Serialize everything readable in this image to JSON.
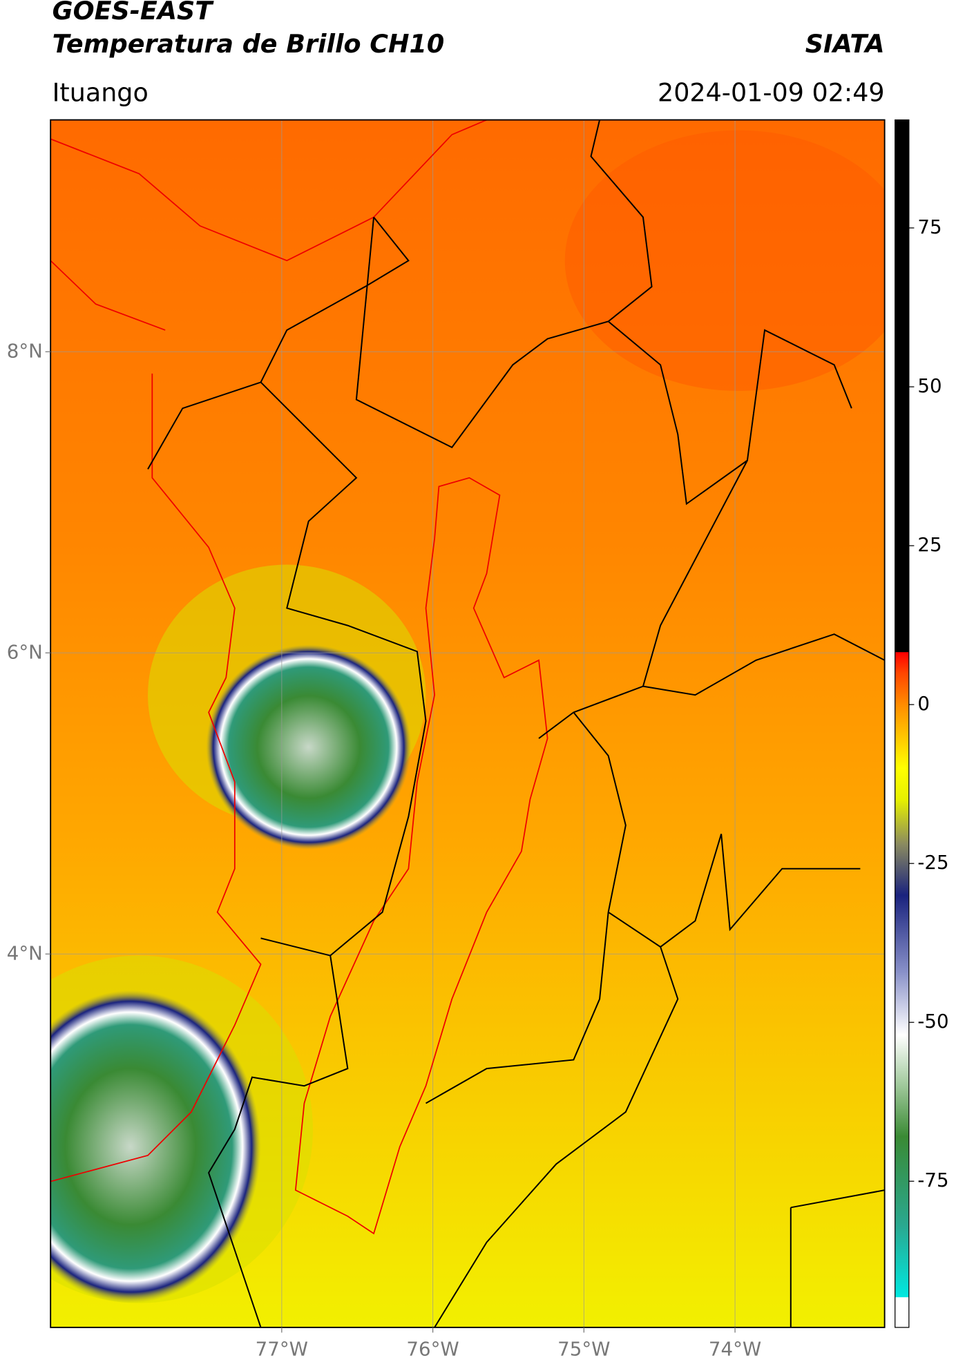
{
  "header": {
    "title": "GOES-EAST",
    "subtitle": "Temperatura de Brillo CH10",
    "brand": "SIATA",
    "location": "Ituango",
    "timestamp": "2024-01-09 02:49"
  },
  "map": {
    "lon_range": [
      -78.53,
      -73.01
    ],
    "lat_range": [
      1.52,
      9.54
    ],
    "lon_ticks": [
      {
        "value": -77,
        "label": "77°W"
      },
      {
        "value": -76,
        "label": "76°W"
      },
      {
        "value": -75,
        "label": "75°W"
      },
      {
        "value": -74,
        "label": "74°W"
      }
    ],
    "lat_ticks": [
      {
        "value": 8,
        "label": "8°N"
      },
      {
        "value": 6,
        "label": "6°N"
      },
      {
        "value": 4,
        "label": "4°N"
      }
    ],
    "grid": true
  },
  "colorbar": {
    "lim": [
      -98,
      92
    ],
    "ticks": [
      75,
      50,
      25,
      0,
      -25,
      -50,
      -75
    ],
    "stops": [
      {
        "value": -98,
        "color": "#ffffff"
      },
      {
        "value": -93.3,
        "color": "#ffffff"
      },
      {
        "value": -93.2,
        "color": "#00e8e0"
      },
      {
        "value": -82,
        "color": "#2aa890"
      },
      {
        "value": -68,
        "color": "#3a8a34"
      },
      {
        "value": -60,
        "color": "#9fc89a"
      },
      {
        "value": -52,
        "color": "#ffffff"
      },
      {
        "value": -42,
        "color": "#8890c8"
      },
      {
        "value": -30,
        "color": "#1a237e"
      },
      {
        "value": -22,
        "color": "#8a8a60"
      },
      {
        "value": -15,
        "color": "#e6f000"
      },
      {
        "value": -10,
        "color": "#ffff00"
      },
      {
        "value": 0,
        "color": "#ff8c00"
      },
      {
        "value": 5,
        "color": "#ff4500"
      },
      {
        "value": 8.2,
        "color": "#ff0000"
      },
      {
        "value": 8.3,
        "color": "#000000"
      },
      {
        "value": 92,
        "color": "#000000"
      }
    ]
  }
}
